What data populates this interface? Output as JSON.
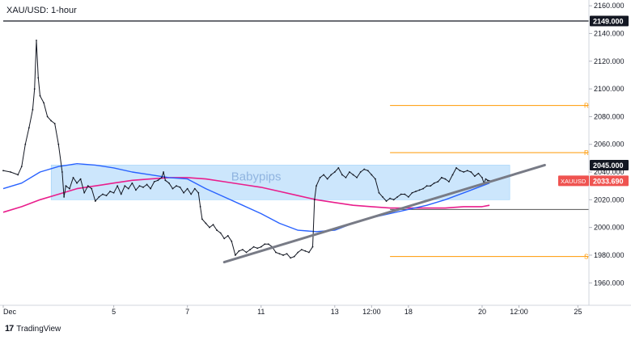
{
  "chart_data": {
    "type": "line",
    "title": "XAU/USD: 1-hour",
    "watermark": "Babypips",
    "y_axis": {
      "min": 1945,
      "max": 2163,
      "ticks": [
        1960,
        1980,
        2000,
        2020,
        2040,
        2060,
        2080,
        2100,
        2120,
        2140,
        2160
      ],
      "tick_labels": [
        "1960.000",
        "1980.000",
        "2000.000",
        "2020.000",
        "2040.000",
        "2060.000",
        "2080.000",
        "2100.000",
        "2120.000",
        "2140.000",
        "2160.000"
      ]
    },
    "x_axis": {
      "ticks": [
        {
          "label": "Dec",
          "x": 0
        },
        {
          "label": "5",
          "x": 3
        },
        {
          "label": "7",
          "x": 5
        },
        {
          "label": "11",
          "x": 7
        },
        {
          "label": "13",
          "x": 9
        },
        {
          "label": "12:00",
          "x": 10
        },
        {
          "label": "18",
          "x": 11
        },
        {
          "label": "20",
          "x": 13
        },
        {
          "label": "12:00",
          "x": 14
        },
        {
          "label": "25",
          "x": 15.6
        }
      ],
      "range": [
        0,
        15.9
      ]
    },
    "price_series": {
      "name": "XAUUSD",
      "points": [
        [
          0,
          2041
        ],
        [
          0.2,
          2040
        ],
        [
          0.4,
          2038
        ],
        [
          0.5,
          2044
        ],
        [
          0.6,
          2060
        ],
        [
          0.7,
          2072
        ],
        [
          0.8,
          2085
        ],
        [
          0.85,
          2100
        ],
        [
          0.9,
          2135
        ],
        [
          0.95,
          2108
        ],
        [
          1.0,
          2095
        ],
        [
          1.1,
          2090
        ],
        [
          1.2,
          2080
        ],
        [
          1.3,
          2077
        ],
        [
          1.4,
          2075
        ],
        [
          1.5,
          2060
        ],
        [
          1.6,
          2040
        ],
        [
          1.65,
          2022
        ],
        [
          1.7,
          2030
        ],
        [
          1.8,
          2028
        ],
        [
          1.9,
          2036
        ],
        [
          2.0,
          2032
        ],
        [
          2.1,
          2035
        ],
        [
          2.2,
          2025
        ],
        [
          2.3,
          2030
        ],
        [
          2.4,
          2028
        ],
        [
          2.5,
          2019
        ],
        [
          2.6,
          2022
        ],
        [
          2.7,
          2024
        ],
        [
          2.8,
          2023
        ],
        [
          2.9,
          2026
        ],
        [
          3.0,
          2025
        ],
        [
          3.1,
          2030
        ],
        [
          3.2,
          2024
        ],
        [
          3.3,
          2030
        ],
        [
          3.4,
          2028
        ],
        [
          3.5,
          2032
        ],
        [
          3.6,
          2027
        ],
        [
          3.7,
          2030
        ],
        [
          3.8,
          2029
        ],
        [
          3.9,
          2031
        ],
        [
          4.0,
          2028
        ],
        [
          4.1,
          2033
        ],
        [
          4.2,
          2034
        ],
        [
          4.3,
          2036
        ],
        [
          4.35,
          2040
        ],
        [
          4.4,
          2034
        ],
        [
          4.5,
          2032
        ],
        [
          4.6,
          2028
        ],
        [
          4.7,
          2030
        ],
        [
          4.8,
          2029
        ],
        [
          4.9,
          2025
        ],
        [
          5.0,
          2028
        ],
        [
          5.1,
          2024
        ],
        [
          5.2,
          2028
        ],
        [
          5.3,
          2025
        ],
        [
          5.35,
          2015
        ],
        [
          5.4,
          2006
        ],
        [
          5.5,
          2003
        ],
        [
          5.6,
          2000
        ],
        [
          5.7,
          2002
        ],
        [
          5.8,
          1998
        ],
        [
          5.9,
          1996
        ],
        [
          6.0,
          1992
        ],
        [
          6.1,
          1994
        ],
        [
          6.2,
          1990
        ],
        [
          6.3,
          1980
        ],
        [
          6.4,
          1983
        ],
        [
          6.5,
          1984
        ],
        [
          6.6,
          1982
        ],
        [
          6.7,
          1984
        ],
        [
          6.8,
          1986
        ],
        [
          6.9,
          1985
        ],
        [
          7.0,
          1986
        ],
        [
          7.1,
          1988
        ],
        [
          7.2,
          1988
        ],
        [
          7.3,
          1986
        ],
        [
          7.4,
          1982
        ],
        [
          7.5,
          1981
        ],
        [
          7.6,
          1980
        ],
        [
          7.7,
          1981
        ],
        [
          7.8,
          1978
        ],
        [
          7.9,
          1979
        ],
        [
          8.0,
          1982
        ],
        [
          8.1,
          1984
        ],
        [
          8.2,
          1983
        ],
        [
          8.3,
          1982
        ],
        [
          8.4,
          1986
        ],
        [
          8.45,
          2020
        ],
        [
          8.5,
          2030
        ],
        [
          8.6,
          2036
        ],
        [
          8.7,
          2038
        ],
        [
          8.8,
          2035
        ],
        [
          8.9,
          2038
        ],
        [
          9.0,
          2040
        ],
        [
          9.1,
          2043
        ],
        [
          9.2,
          2038
        ],
        [
          9.3,
          2036
        ],
        [
          9.4,
          2040
        ],
        [
          9.5,
          2038
        ],
        [
          9.6,
          2036
        ],
        [
          9.7,
          2040
        ],
        [
          9.8,
          2042
        ],
        [
          9.9,
          2041
        ],
        [
          10.0,
          2038
        ],
        [
          10.1,
          2035
        ],
        [
          10.2,
          2025
        ],
        [
          10.3,
          2022
        ],
        [
          10.4,
          2019
        ],
        [
          10.5,
          2021
        ],
        [
          10.6,
          2020
        ],
        [
          10.7,
          2022
        ],
        [
          10.8,
          2024
        ],
        [
          10.9,
          2024
        ],
        [
          11.0,
          2022
        ],
        [
          11.1,
          2025
        ],
        [
          11.2,
          2026
        ],
        [
          11.3,
          2027
        ],
        [
          11.4,
          2028
        ],
        [
          11.5,
          2030
        ],
        [
          11.6,
          2030
        ],
        [
          11.7,
          2032
        ],
        [
          11.8,
          2033
        ],
        [
          11.9,
          2036
        ],
        [
          12.0,
          2035
        ],
        [
          12.1,
          2033
        ],
        [
          12.2,
          2038
        ],
        [
          12.3,
          2043
        ],
        [
          12.4,
          2041
        ],
        [
          12.5,
          2040
        ],
        [
          12.6,
          2041
        ],
        [
          12.7,
          2040
        ],
        [
          12.8,
          2037
        ],
        [
          12.9,
          2039
        ],
        [
          13.0,
          2036
        ],
        [
          13.05,
          2032
        ],
        [
          13.1,
          2035
        ],
        [
          13.15,
          2034
        ],
        [
          13.2,
          2033.69
        ]
      ]
    },
    "ma_blue": {
      "name": "MA (blue)",
      "color": "#2962ff",
      "points": [
        [
          0,
          2028
        ],
        [
          0.5,
          2032
        ],
        [
          1.0,
          2040
        ],
        [
          1.5,
          2044
        ],
        [
          2.0,
          2046
        ],
        [
          2.5,
          2045
        ],
        [
          3.0,
          2043
        ],
        [
          3.5,
          2040
        ],
        [
          4.0,
          2038
        ],
        [
          4.5,
          2036
        ],
        [
          5.0,
          2035
        ],
        [
          5.5,
          2028
        ],
        [
          6.0,
          2022
        ],
        [
          6.5,
          2016
        ],
        [
          7.0,
          2010
        ],
        [
          7.5,
          2003
        ],
        [
          8.0,
          1998
        ],
        [
          8.5,
          1997
        ],
        [
          9.0,
          1998
        ],
        [
          9.5,
          2003
        ],
        [
          10.0,
          2007
        ],
        [
          10.5,
          2010
        ],
        [
          11.0,
          2013
        ],
        [
          11.5,
          2016
        ],
        [
          12.0,
          2020
        ],
        [
          12.5,
          2025
        ],
        [
          13.0,
          2030
        ],
        [
          13.2,
          2032
        ]
      ]
    },
    "ma_magenta": {
      "name": "MA (magenta)",
      "color": "#e91e8c",
      "points": [
        [
          0,
          2011
        ],
        [
          0.5,
          2015
        ],
        [
          1.0,
          2020
        ],
        [
          1.5,
          2024
        ],
        [
          2.0,
          2028
        ],
        [
          2.5,
          2030
        ],
        [
          3.0,
          2032
        ],
        [
          3.5,
          2034
        ],
        [
          4.0,
          2035
        ],
        [
          4.5,
          2036
        ],
        [
          5.0,
          2036
        ],
        [
          5.5,
          2035
        ],
        [
          6.0,
          2033
        ],
        [
          6.5,
          2031
        ],
        [
          7.0,
          2029
        ],
        [
          7.5,
          2026
        ],
        [
          8.0,
          2023
        ],
        [
          8.5,
          2020
        ],
        [
          9.0,
          2018
        ],
        [
          9.5,
          2016
        ],
        [
          10.0,
          2015
        ],
        [
          10.5,
          2014
        ],
        [
          11.0,
          2014
        ],
        [
          11.5,
          2014
        ],
        [
          12.0,
          2014
        ],
        [
          12.5,
          2015
        ],
        [
          13.0,
          2015
        ],
        [
          13.2,
          2016
        ]
      ]
    },
    "horizontal_lines": [
      {
        "price": 2149.0,
        "color": "#131722",
        "x_start": 0,
        "x_end": 15.9
      },
      {
        "price": 2088,
        "color": "#ff9800",
        "x_start": 10.5,
        "x_end": 15.9
      },
      {
        "price": 2054,
        "color": "#ff9800",
        "x_start": 10.5,
        "x_end": 15.9
      },
      {
        "price": 2013,
        "color": "#555555",
        "x_start": 10.5,
        "x_end": 15.9
      },
      {
        "price": 1979,
        "color": "#ff9800",
        "x_start": 10.5,
        "x_end": 15.9
      }
    ],
    "level_letters": [
      {
        "text": "R",
        "price": 2088
      },
      {
        "text": "R",
        "price": 2054
      },
      {
        "text": "S",
        "price": 1979
      }
    ],
    "trendline": {
      "x1": 6.0,
      "y1": 1975,
      "x2": 14.7,
      "y2": 2045,
      "color": "#787b86"
    },
    "range_box": {
      "x1": 1.3,
      "x2": 13.75,
      "y_top": 2045,
      "y_bottom": 2020,
      "color": "#bbdefb"
    },
    "price_badges": [
      {
        "label": "2149.000",
        "price": 2149.0,
        "bg": "#131722",
        "fg": "#ffffff"
      },
      {
        "label": "2045.000",
        "price": 2045.0,
        "bg": "#131722",
        "fg": "#ffffff"
      },
      {
        "label": "2033.690",
        "price": 2033.69,
        "bg": "#ef5350",
        "fg": "#ffffff",
        "symbol": "XAUUSD"
      }
    ]
  },
  "branding": {
    "logo_text": "17",
    "name": "TradingView"
  }
}
